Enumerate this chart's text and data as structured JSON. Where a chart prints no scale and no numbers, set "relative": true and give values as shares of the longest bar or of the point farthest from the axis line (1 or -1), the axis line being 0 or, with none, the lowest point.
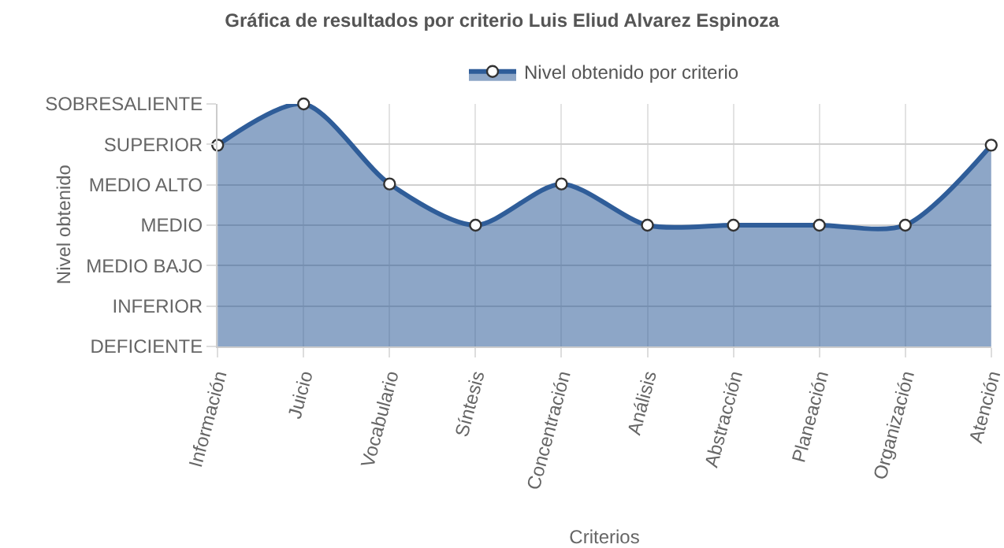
{
  "chart_data": {
    "type": "area",
    "title": "Gráfica de resultados por criterio Luis Eliud Alvarez Espinoza",
    "xlabel": "Criterios",
    "categories": [
      "Información",
      "Juicio",
      "Vocabulario",
      "Síntesis",
      "Concentración",
      "Análisis",
      "Abstracción",
      "Planeación",
      "Organización",
      "Atención"
    ],
    "series": [
      {
        "name": "Nivel obtenido por criterio",
        "color": "#2f5d99",
        "values": [
          0.83,
          1,
          0.67,
          0.5,
          0.67,
          0.5,
          0.5,
          0.5,
          0.5,
          0.83
        ]
      }
    ],
    "relative": true,
    "annotations": [
      "Nivel obtenido",
      "DEFICIENTE",
      "INFERIOR",
      "MEDIO BAJO",
      "MEDIO",
      "MEDIO ALTO",
      "SUPERIOR",
      "SOBRESALIENTE"
    ],
    "grid": true,
    "legend": "top",
    "marker": "circle",
    "line_style": "solid"
  }
}
